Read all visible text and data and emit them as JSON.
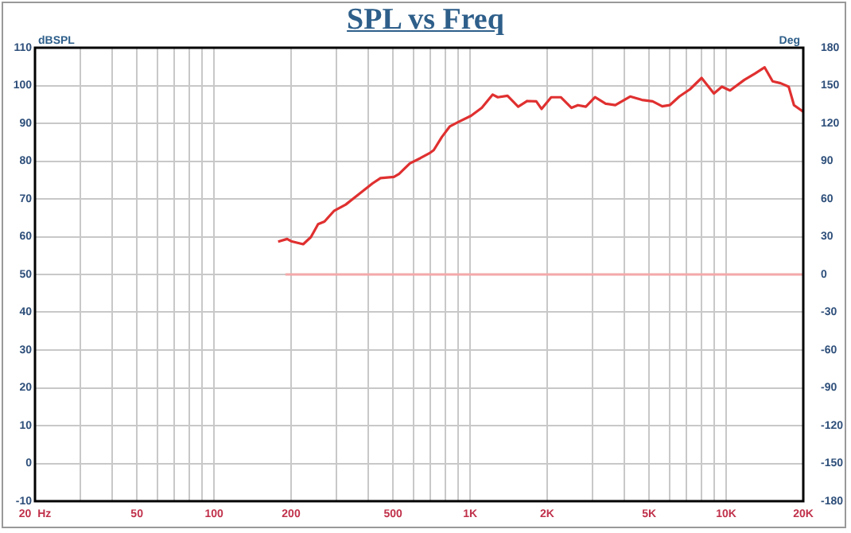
{
  "chart_data": {
    "type": "line",
    "title": "SPL vs Freq",
    "ylabel": "dBSPL",
    "y2label": "Deg",
    "log": "x",
    "grid": true,
    "legend": false,
    "marker": "none",
    "line_style": "solid",
    "xlim": [
      20,
      20000
    ],
    "xticks": [
      {
        "value": 20,
        "label": "20  Hz"
      },
      {
        "value": 30,
        "label": null
      },
      {
        "value": 40,
        "label": null
      },
      50,
      {
        "value": 60,
        "label": null
      },
      {
        "value": 70,
        "label": null
      },
      {
        "value": 80,
        "label": null
      },
      {
        "value": 90,
        "label": null
      },
      100,
      200,
      {
        "value": 300,
        "label": null
      },
      {
        "value": 400,
        "label": null
      },
      500,
      {
        "value": 600,
        "label": null
      },
      {
        "value": 700,
        "label": null
      },
      {
        "value": 800,
        "label": null
      },
      {
        "value": 900,
        "label": null
      },
      {
        "value": 1000,
        "label": "1K"
      },
      {
        "value": 2000,
        "label": "2K"
      },
      {
        "value": 3000,
        "label": null
      },
      {
        "value": 4000,
        "label": null
      },
      {
        "value": 5000,
        "label": "5K"
      },
      {
        "value": 6000,
        "label": null
      },
      {
        "value": 7000,
        "label": null
      },
      {
        "value": 8000,
        "label": null
      },
      {
        "value": 9000,
        "label": null
      },
      {
        "value": 10000,
        "label": "10K"
      },
      {
        "value": 20000,
        "label": "20K"
      }
    ],
    "ylim": [
      -10,
      110
    ],
    "yticks": [
      -10,
      0,
      10,
      20,
      30,
      40,
      50,
      60,
      70,
      80,
      90,
      100,
      110
    ],
    "y2lim": [
      -180,
      180
    ],
    "y2ticks": [
      -180,
      -150,
      -120,
      -90,
      -60,
      -30,
      0,
      30,
      60,
      90,
      120,
      150,
      180
    ],
    "series": [
      {
        "color": "#e03030",
        "x": [
          178,
          193,
          200,
          223,
          239,
          255,
          270,
          294,
          327,
          369,
          416,
          447,
          504,
          528,
          582,
          640,
          698,
          721,
          776,
          834,
          896,
          1009,
          1111,
          1224,
          1283,
          1400,
          1541,
          1672,
          1813,
          1901,
          2073,
          2260,
          2489,
          2636,
          2831,
          3075,
          3385,
          3690,
          4218,
          4688,
          5162,
          5627,
          6019,
          6564,
          7219,
          8017,
          8954,
          9621,
          10351,
          11776,
          12966,
          14130,
          15185,
          16321,
          17538,
          18400,
          19950
        ],
        "values": [
          58.7,
          59.4,
          58.8,
          58.0,
          59.9,
          63.3,
          64.0,
          66.8,
          68.5,
          71.3,
          74.1,
          75.5,
          75.8,
          76.6,
          79.4,
          80.8,
          82.2,
          82.9,
          86.4,
          89.2,
          90.3,
          92.0,
          94.1,
          97.6,
          96.9,
          97.3,
          94.4,
          95.9,
          95.8,
          93.8,
          96.9,
          96.9,
          94.1,
          94.8,
          94.4,
          96.9,
          95.2,
          94.8,
          97.1,
          96.2,
          95.8,
          94.5,
          94.8,
          97.1,
          99.0,
          102.0,
          97.9,
          99.7,
          98.7,
          101.5,
          103.2,
          104.8,
          101.1,
          100.6,
          99.7,
          94.8,
          93.1
        ]
      },
      {
        "color": "#f4a8a8",
        "axis": "y2",
        "x": [
          190,
          20000
        ],
        "values": [
          0,
          0
        ]
      }
    ]
  }
}
